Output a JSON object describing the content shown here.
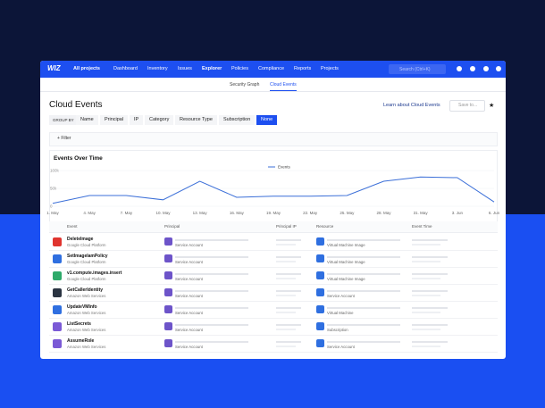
{
  "nav": {
    "logo": "WIZ",
    "project": "All projects",
    "items": [
      "Dashboard",
      "Inventory",
      "Issues",
      "Explorer",
      "Policies",
      "Compliance",
      "Reports",
      "Projects"
    ],
    "search": "Search (Ctrl+K)"
  },
  "tabs": [
    "Security Graph",
    "Cloud Events"
  ],
  "header": {
    "title": "Cloud Events",
    "learn": "Learn about Cloud Events",
    "save": "Save to..."
  },
  "group_by": {
    "label": "GROUP BY",
    "options": [
      "Name",
      "Principal",
      "IP",
      "Category",
      "Resource Type",
      "Subscription",
      "None"
    ]
  },
  "filter": "Filter",
  "chart_data": {
    "type": "line",
    "title": "Events Over Time",
    "categories": [
      "1. May",
      "4. May",
      "7. May",
      "10. May",
      "13. May",
      "16. May",
      "19. May",
      "22. May",
      "25. May",
      "28. May",
      "31. May",
      "3. Jun",
      "6. Jun"
    ],
    "series": [
      {
        "name": "Events",
        "color": "#3b6fd8",
        "values": [
          8000,
          30000,
          30000,
          18000,
          70000,
          25000,
          28000,
          28000,
          30000,
          70000,
          82000,
          80000,
          12000
        ]
      }
    ],
    "ylim": [
      0,
      100000
    ],
    "yticks": [
      0,
      {
        "value": 50000,
        "label": "50k"
      },
      {
        "value": 100000,
        "label": "100k"
      }
    ],
    "grid": true,
    "legend": "top"
  },
  "table": {
    "columns": [
      "Event",
      "Principal",
      "Principal IP",
      "Resource",
      "Event Time"
    ],
    "rows": [
      {
        "event": "DeleteImage",
        "provider": "Google Cloud Platform",
        "principal": "Service Account",
        "resource": "Virtual Machine Image",
        "icon_color": "#e0342f"
      },
      {
        "event": "SetImageIamPolicy",
        "provider": "Google Cloud Platform",
        "principal": "Service Account",
        "resource": "Virtual Machine Image",
        "icon_color": "#2f6fe0"
      },
      {
        "event": "v1.compute.images.insert",
        "provider": "Google Cloud Platform",
        "principal": "Service Account",
        "resource": "Virtual Machine Image",
        "icon_color": "#2eaa6a"
      },
      {
        "event": "GetCallerIdentity",
        "provider": "Amazon Web Services",
        "principal": "Service Account",
        "resource": "Service Account",
        "icon_color": "#2b3442"
      },
      {
        "event": "UpdateVMInfo",
        "provider": "Amazon Web Services",
        "principal": "Service Account",
        "resource": "Virtual Machine",
        "icon_color": "#2f6fe0"
      },
      {
        "event": "ListSecrets",
        "provider": "Amazon Web Services",
        "principal": "Service Account",
        "resource": "Subscription",
        "icon_color": "#7b5ad6"
      },
      {
        "event": "AssumeRole",
        "provider": "Amazon Web Services",
        "principal": "Service Account",
        "resource": "Service Account",
        "icon_color": "#7b5ad6"
      }
    ]
  }
}
